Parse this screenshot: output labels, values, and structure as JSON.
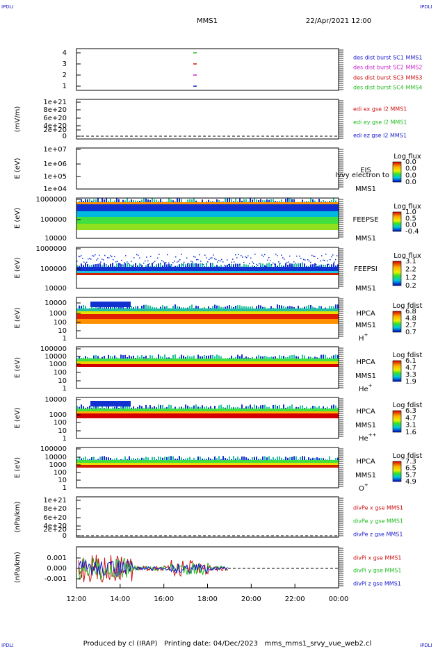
{
  "header": {
    "title": "MMS1",
    "date": "22/Apr/2021 12:00",
    "corner": "IPDLI"
  },
  "panels": [
    {
      "ylabel": null,
      "yticks": [
        "4",
        "3",
        "2",
        "1"
      ],
      "legend": [
        {
          "text": "des dist burst SC1 MMS1",
          "color": "#1a1acc"
        },
        {
          "text": "des dist burst SC2 MMS2",
          "color": "#cc22cc"
        },
        {
          "text": "des dist burst SC3 MMS3",
          "color": "#cc1111"
        },
        {
          "text": "des dist burst SC4 MMS4",
          "color": "#22bb22"
        }
      ]
    },
    {
      "ylabel": "(mV/m)",
      "yticks": [
        "1e+21",
        "8e+20",
        "6e+20",
        "4e+20",
        "2e+20",
        "0"
      ],
      "legend": [
        {
          "text": "edi ex gse l2 MMS1",
          "color": "#cc1111"
        },
        {
          "text": "edi ey gse l2 MMS1",
          "color": "#22bb22"
        },
        {
          "text": "edi ez gse l2 MMS1",
          "color": "#1a1acc"
        }
      ]
    },
    {
      "ylabel": "E (eV)",
      "yticks": [
        "1e+07",
        "1e+06",
        "1e+05",
        "1e+04"
      ],
      "instrument": "EIS",
      "mission": "MMS1",
      "overlay": "Ivvy electron to",
      "colorbar": {
        "title": "Log flux",
        "ticks": [
          "0.0",
          "0.0",
          "0.0",
          "0.0"
        ]
      }
    },
    {
      "ylabel": "E (eV)",
      "yticks": [
        "1000000",
        "100000",
        "10000"
      ],
      "instrument": "FEEPSE",
      "mission": "MMS1",
      "colorbar": {
        "title": "Log flux",
        "ticks": [
          "1.0",
          "0.5",
          "0.0",
          "-0.4"
        ]
      }
    },
    {
      "ylabel": "E (eV)",
      "yticks": [
        "1000000",
        "100000",
        "10000"
      ],
      "instrument": "FEEPSI",
      "mission": "MMS1",
      "colorbar": {
        "title": "Log flux",
        "ticks": [
          "3.1",
          "2.2",
          "1.2",
          "0.2"
        ]
      }
    },
    {
      "ylabel": "E (eV)",
      "yticks": [
        "10000",
        "1000",
        "100",
        "10",
        "1"
      ],
      "instrument": "HPCA",
      "mission": "MMS1",
      "species": "H",
      "species_sup": "+",
      "colorbar": {
        "title": "Log fdist",
        "ticks": [
          "6.8",
          "4.8",
          "2.7",
          "0.7"
        ]
      }
    },
    {
      "ylabel": "E (eV)",
      "yticks": [
        "100000",
        "10000",
        "1000",
        "100",
        "10",
        "1"
      ],
      "instrument": "HPCA",
      "mission": "MMS1",
      "species": "He",
      "species_sup": "+",
      "colorbar": {
        "title": "Log fdist",
        "ticks": [
          "6.1",
          "4.7",
          "3.3",
          "1.9"
        ]
      }
    },
    {
      "ylabel": "E (eV)",
      "yticks": [
        "10000",
        "1000",
        "100",
        "10",
        "1"
      ],
      "instrument": "HPCA",
      "mission": "MMS1",
      "species": "He",
      "species_sup": "++",
      "colorbar": {
        "title": "Log fdist",
        "ticks": [
          "6.3",
          "4.7",
          "3.1",
          "1.6"
        ]
      }
    },
    {
      "ylabel": "E (eV)",
      "yticks": [
        "100000",
        "10000",
        "1000",
        "100",
        "10",
        "1"
      ],
      "instrument": "HPCA",
      "mission": "MMS1",
      "species": "O",
      "species_sup": "+",
      "colorbar": {
        "title": "Log fdist",
        "ticks": [
          "7.3",
          "6.5",
          "5.7",
          "4.9"
        ]
      }
    },
    {
      "ylabel": "(nPa/km)",
      "yticks": [
        "1e+21",
        "8e+20",
        "6e+20",
        "4e+20",
        "2e+20",
        "0"
      ],
      "legend": [
        {
          "text": "divPe x gse MMS1",
          "color": "#cc1111"
        },
        {
          "text": "divPe y gse MMS1",
          "color": "#22bb22"
        },
        {
          "text": "divPe z gse MMS1",
          "color": "#1a1acc"
        }
      ]
    },
    {
      "ylabel": "(nPa/km)",
      "yticks": [
        "0.001",
        "0.000",
        "-0.001"
      ],
      "legend": [
        {
          "text": "divPi x gse MMS1",
          "color": "#cc1111"
        },
        {
          "text": "divPi y gse MMS1",
          "color": "#22bb22"
        },
        {
          "text": "divPi z gse MMS1",
          "color": "#1a1acc"
        }
      ]
    }
  ],
  "xticks": [
    "12:00",
    "14:00",
    "16:00",
    "18:00",
    "20:00",
    "22:00",
    "00:00"
  ],
  "footer": "Produced by cl (IRAP)   Printing date: 04/Dec/2023   mms_mms1_srvy_vue_web2.cl"
}
